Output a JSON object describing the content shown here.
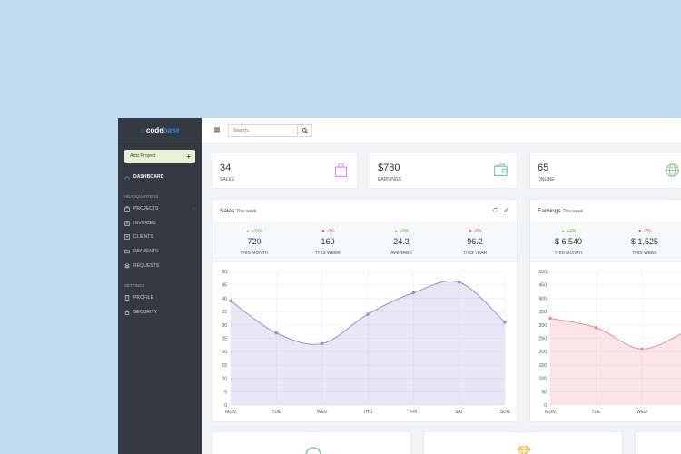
{
  "sidebar": {
    "logo_prefix": "code",
    "logo_highlight": "base",
    "add_project": "Add Project",
    "dashboard": "DASHBOARD",
    "heading1": "HEADQUARTERS",
    "items1": [
      "PROJECTS",
      "INVOICES",
      "CLIENTS",
      "PAYMENTS",
      "REQUESTS"
    ],
    "heading2": "SETTINGS",
    "items2": [
      "PROFILE",
      "SECURITY"
    ]
  },
  "topbar": {
    "search_placeholder": "Search.."
  },
  "stats": [
    {
      "value": "34",
      "label": "SALES",
      "icon": "shopping-bag-icon",
      "color": "#e07ef0"
    },
    {
      "value": "$780",
      "label": "EARNINGS",
      "icon": "wallet-icon",
      "color": "#6cc6a0"
    },
    {
      "value": "65",
      "label": "ONLINE",
      "icon": "globe-icon",
      "color": "#7cc784"
    }
  ],
  "sales_panel": {
    "title": "Sales",
    "subtitle": "This week",
    "summary": [
      {
        "delta": "+16%",
        "dir": "up",
        "value": "720",
        "label": "THIS MONTH"
      },
      {
        "delta": "-3%",
        "dir": "down",
        "value": "160",
        "label": "THIS WEEK"
      },
      {
        "delta": "+9%",
        "dir": "up",
        "value": "24.3",
        "label": "AVERAGE"
      },
      {
        "delta": "-6%",
        "dir": "down",
        "value": "96.2",
        "label": "THIS YEAR"
      }
    ]
  },
  "earnings_panel": {
    "title": "Earnings",
    "subtitle": "This week",
    "summary": [
      {
        "delta": "+4%",
        "dir": "up",
        "value": "$ 6,540",
        "label": "THIS MONTH"
      },
      {
        "delta": "-7%",
        "dir": "down",
        "value": "$ 1,525",
        "label": "THIS WEEK"
      }
    ]
  },
  "chart_data": [
    {
      "type": "area",
      "categories": [
        "MON",
        "TUE",
        "WED",
        "THU",
        "FRI",
        "SAT",
        "SUN"
      ],
      "values": [
        39,
        27,
        23,
        34,
        42,
        46,
        31
      ],
      "ylim": [
        0,
        50
      ],
      "yticks": [
        0,
        5,
        10,
        15,
        20,
        25,
        30,
        35,
        40,
        45,
        50
      ],
      "color": "#9b8fd6",
      "grid": true
    },
    {
      "type": "area",
      "categories": [
        "MON",
        "TUE",
        "WED",
        "THU"
      ],
      "values": [
        325,
        290,
        210,
        280
      ],
      "ylim": [
        0,
        500
      ],
      "yticks": [
        0,
        50,
        100,
        150,
        200,
        250,
        300,
        350,
        400,
        450,
        500
      ],
      "color": "#f08aa0",
      "grid": true
    }
  ]
}
